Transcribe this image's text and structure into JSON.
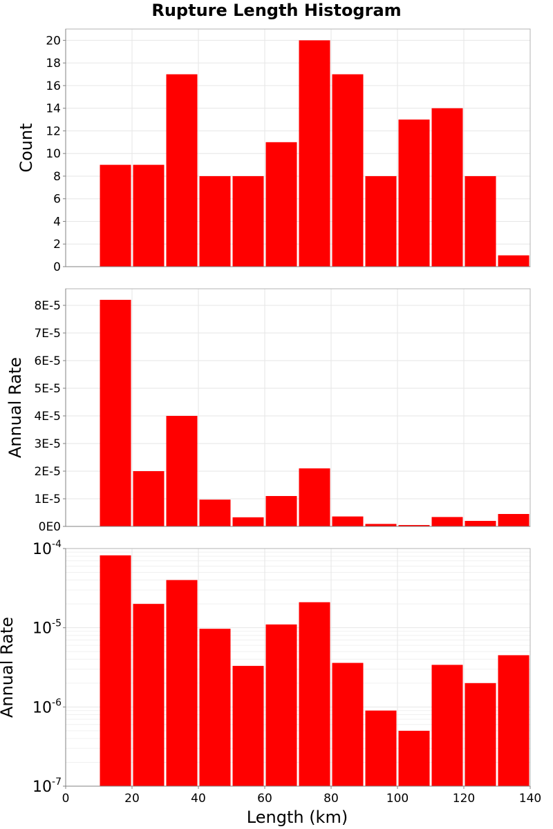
{
  "chart_data": {
    "title": "Rupture Length Histogram",
    "type": "bar",
    "bar_color": "#ff0000",
    "xlabel": "Length (km)",
    "xlim": [
      0,
      140
    ],
    "x_ticks": [
      0,
      20,
      40,
      60,
      80,
      100,
      120,
      140
    ],
    "bin_width": 10,
    "bin_starts": [
      10,
      20,
      30,
      40,
      50,
      60,
      70,
      80,
      90,
      100,
      110,
      120,
      130
    ],
    "panels": [
      {
        "ylabel": "Count",
        "scale": "linear",
        "ylim": [
          0,
          21
        ],
        "y_ticks": [
          0,
          2,
          4,
          6,
          8,
          10,
          12,
          14,
          16,
          18,
          20
        ],
        "y_tick_labels": [
          "0",
          "2",
          "4",
          "6",
          "8",
          "10",
          "12",
          "14",
          "16",
          "18",
          "20"
        ],
        "values": [
          9,
          9,
          17,
          8,
          8,
          11,
          20,
          17,
          8,
          13,
          14,
          8,
          1
        ]
      },
      {
        "ylabel": "Annual Rate",
        "scale": "linear",
        "ylim": [
          0,
          8.6e-05
        ],
        "y_ticks": [
          0,
          1e-05,
          2e-05,
          3e-05,
          4e-05,
          5e-05,
          6e-05,
          7e-05,
          8e-05
        ],
        "y_tick_labels": [
          "0E0",
          "1E-5",
          "2E-5",
          "3E-5",
          "4E-5",
          "5E-5",
          "6E-5",
          "7E-5",
          "8E-5"
        ],
        "values": [
          8.2e-05,
          2e-05,
          4e-05,
          9.7e-06,
          3.3e-06,
          1.1e-05,
          2.1e-05,
          3.6e-06,
          9e-07,
          5e-07,
          3.4e-06,
          2e-06,
          4.5e-06
        ]
      },
      {
        "ylabel": "Annual Rate",
        "scale": "log",
        "ylim": [
          1e-07,
          0.0001
        ],
        "y_ticks": [
          1e-07,
          1e-06,
          1e-05,
          0.0001
        ],
        "y_tick_labels": [
          {
            "base": "10",
            "exp": "-7"
          },
          {
            "base": "10",
            "exp": "-6"
          },
          {
            "base": "10",
            "exp": "-5"
          },
          {
            "base": "10",
            "exp": "-4"
          }
        ],
        "values": [
          8.2e-05,
          2e-05,
          4e-05,
          9.7e-06,
          3.3e-06,
          1.1e-05,
          2.1e-05,
          3.6e-06,
          9e-07,
          5e-07,
          3.4e-06,
          2e-06,
          4.5e-06
        ]
      }
    ]
  }
}
